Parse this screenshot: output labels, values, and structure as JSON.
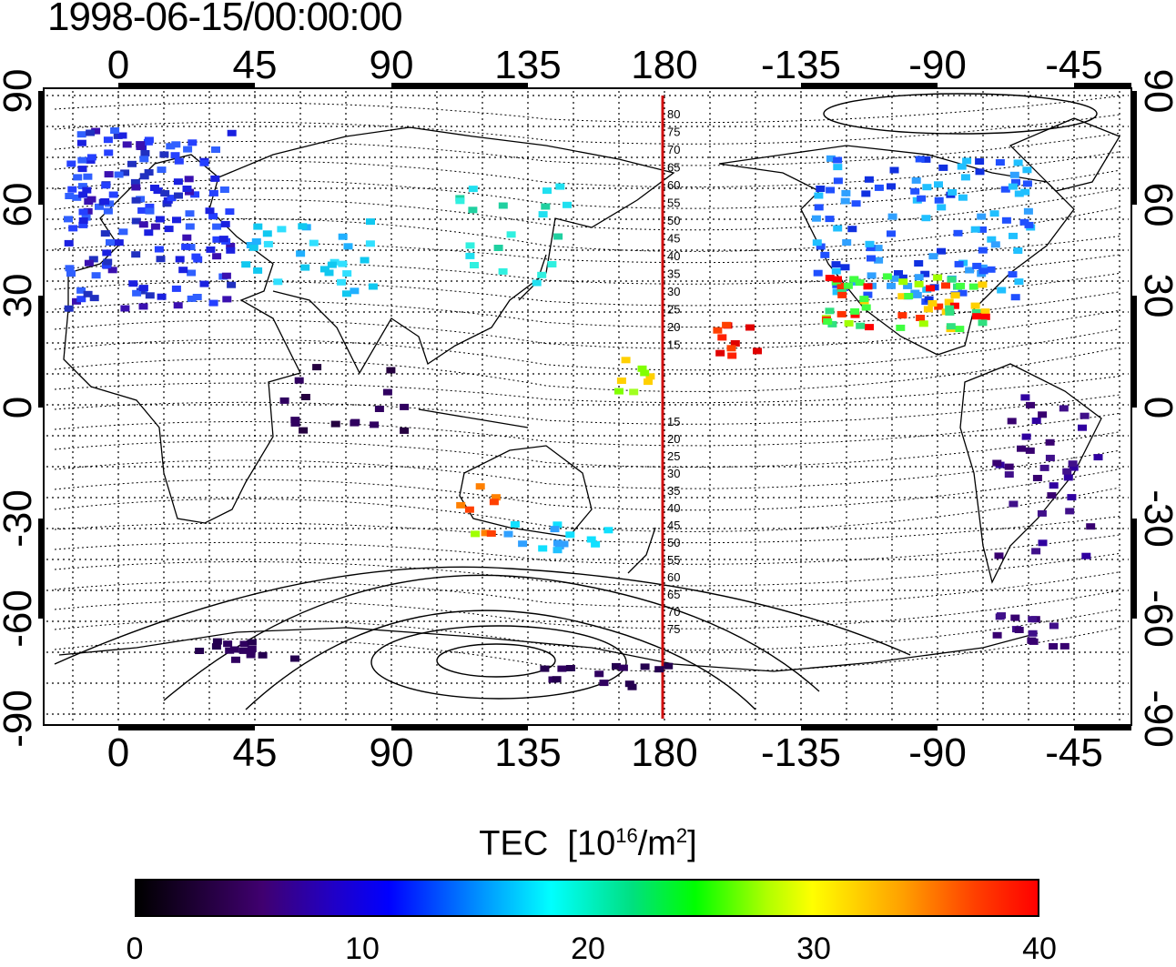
{
  "title": "1998-06-15/00:00:00",
  "x_ticks": [
    "0",
    "45",
    "90",
    "135",
    "180",
    "-135",
    "-90",
    "-45"
  ],
  "y_ticks": [
    "90",
    "60",
    "30",
    "0",
    "-30",
    "-60",
    "-90"
  ],
  "contour_labels_north": [
    "80",
    "75",
    "70",
    "65",
    "60",
    "55",
    "50",
    "45",
    "40",
    "35",
    "30",
    "25",
    "20",
    "15"
  ],
  "contour_labels_south": [
    "15",
    "20",
    "25",
    "30",
    "35",
    "40",
    "45",
    "50",
    "55",
    "60",
    "65",
    "70",
    "75"
  ],
  "colorbar": {
    "title": "TEC",
    "unit_base": "[10",
    "unit_exp": "16",
    "unit_mid": "/m",
    "unit_exp2": "2",
    "unit_end": "]",
    "ticks": [
      "0",
      "10",
      "20",
      "30",
      "40"
    ]
  },
  "colors": {
    "meridian_line": "#d01010"
  }
}
